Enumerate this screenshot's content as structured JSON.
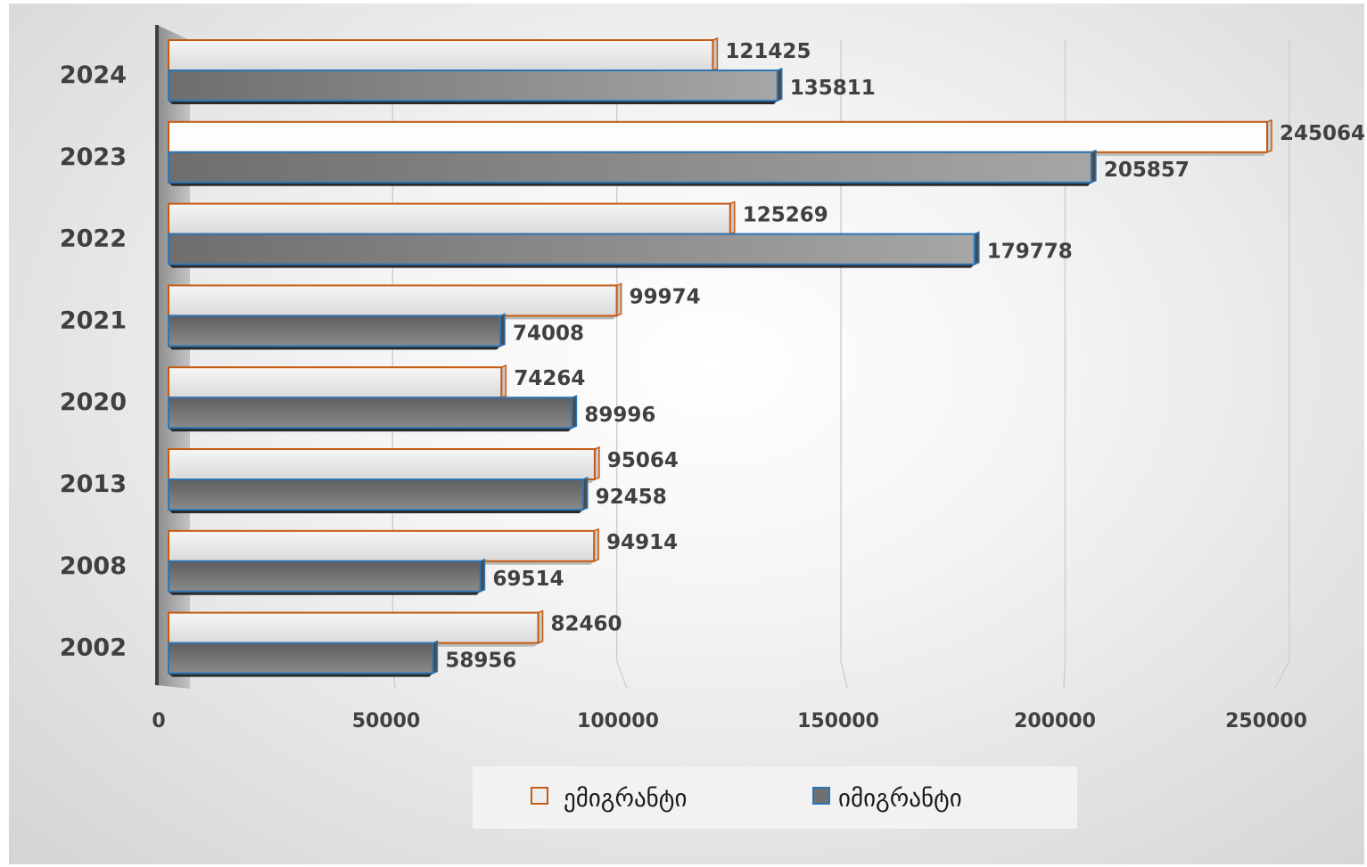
{
  "chart_data": {
    "type": "bar",
    "orientation": "horizontal",
    "categories": [
      "2024",
      "2023",
      "2022",
      "2021",
      "2020",
      "2013",
      "2008",
      "2002"
    ],
    "series": [
      {
        "name": "ემიგრანტი",
        "values": [
          121425,
          245064,
          125269,
          99974,
          74264,
          95064,
          94914,
          82460
        ],
        "fill": "#e4e4e4",
        "stroke": "#c55a11"
      },
      {
        "name": "იმიგრანტი",
        "values": [
          135811,
          205857,
          179778,
          74008,
          89996,
          92458,
          69514,
          58956
        ],
        "fill": "#777777",
        "stroke": "#2e75b6"
      }
    ],
    "xticks": [
      "0",
      "50000",
      "100000",
      "150000",
      "200000",
      "250000"
    ],
    "xlim": [
      0,
      250000
    ],
    "grid": true,
    "legend_position": "bottom",
    "data_labels": true
  }
}
